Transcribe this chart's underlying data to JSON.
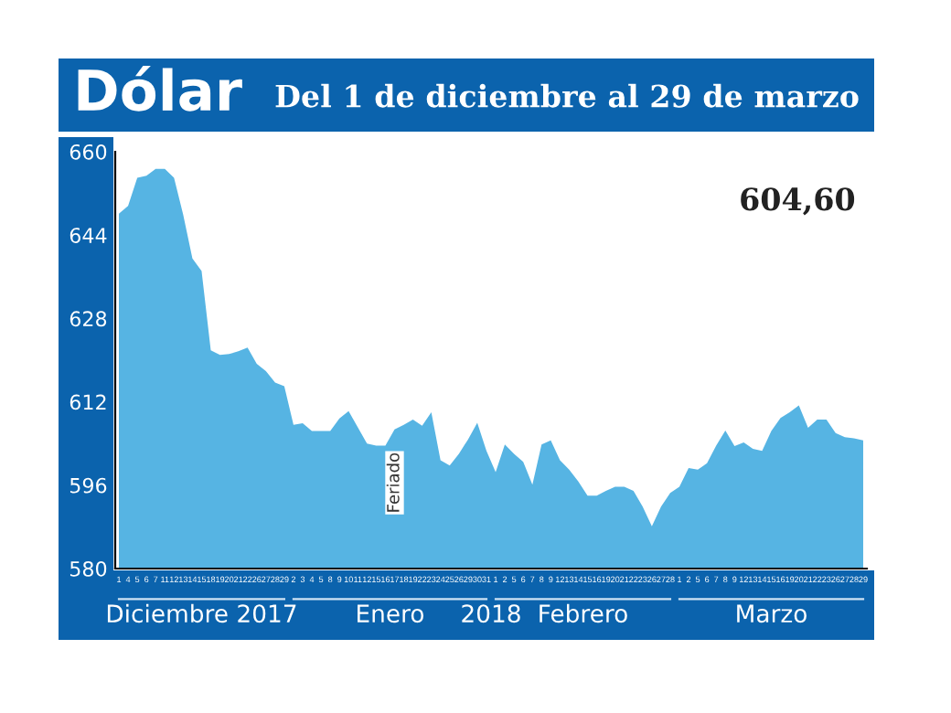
{
  "chart_data": {
    "type": "area",
    "title": "Dólar",
    "subtitle": "Del 1 de diciembre al 29 de marzo",
    "categories": [
      "1",
      "4",
      "5",
      "6",
      "7",
      "11",
      "12",
      "13",
      "14",
      "15",
      "18",
      "19",
      "20",
      "21",
      "22",
      "26",
      "27",
      "28",
      "29",
      "2",
      "3",
      "4",
      "5",
      "8",
      "9",
      "10",
      "11",
      "12",
      "15",
      "16",
      "17",
      "18",
      "19",
      "22",
      "23",
      "24",
      "25",
      "26",
      "29",
      "30",
      "31",
      "1",
      "2",
      "5",
      "6",
      "7",
      "8",
      "9",
      "12",
      "13",
      "14",
      "15",
      "16",
      "19",
      "20",
      "21",
      "22",
      "23",
      "26",
      "27",
      "28",
      "1",
      "2",
      "5",
      "6",
      "7",
      "8",
      "9",
      "12",
      "13",
      "14",
      "15",
      "16",
      "19",
      "20",
      "21",
      "22",
      "23",
      "26",
      "27",
      "28",
      "29"
    ],
    "series": [
      {
        "color": "#56b4e3",
        "values": [
          648.1,
          649.6,
          655,
          655.4,
          656.7,
          656.7,
          655,
          647.9,
          639.5,
          637.1,
          621.9,
          621,
          621.2,
          621.7,
          622.4,
          619.3,
          617.9,
          615.7,
          615,
          607.6,
          607.9,
          606.4,
          606.4,
          606.4,
          608.8,
          610.2,
          607.1,
          604,
          603.6,
          603.6,
          606.7,
          607.6,
          608.6,
          607.4,
          610,
          600.8,
          599.8,
          602,
          604.8,
          608,
          602.6,
          598.5,
          603.8,
          602,
          600.5,
          596.1,
          603.8,
          604.6,
          600.8,
          599,
          596.7,
          594,
          594,
          594.9,
          595.7,
          595.7,
          594.9,
          591.9,
          588.1,
          591.9,
          594.5,
          595.7,
          599.3,
          599,
          600.2,
          603.6,
          606.5,
          603.5,
          604.2,
          603,
          602.6,
          606.4,
          608.9,
          610,
          611.3,
          607,
          608.6,
          608.6,
          606,
          605.2,
          605,
          604.6
        ]
      }
    ],
    "ylim": [
      580,
      660
    ],
    "yticks": [
      580,
      596,
      612,
      628,
      644,
      660
    ],
    "grid": false,
    "legend": false,
    "annotations": [
      "604,60",
      "Feriado",
      "Diciembre 2017",
      "Enero",
      "2018",
      "Febrero",
      "Marzo"
    ]
  }
}
